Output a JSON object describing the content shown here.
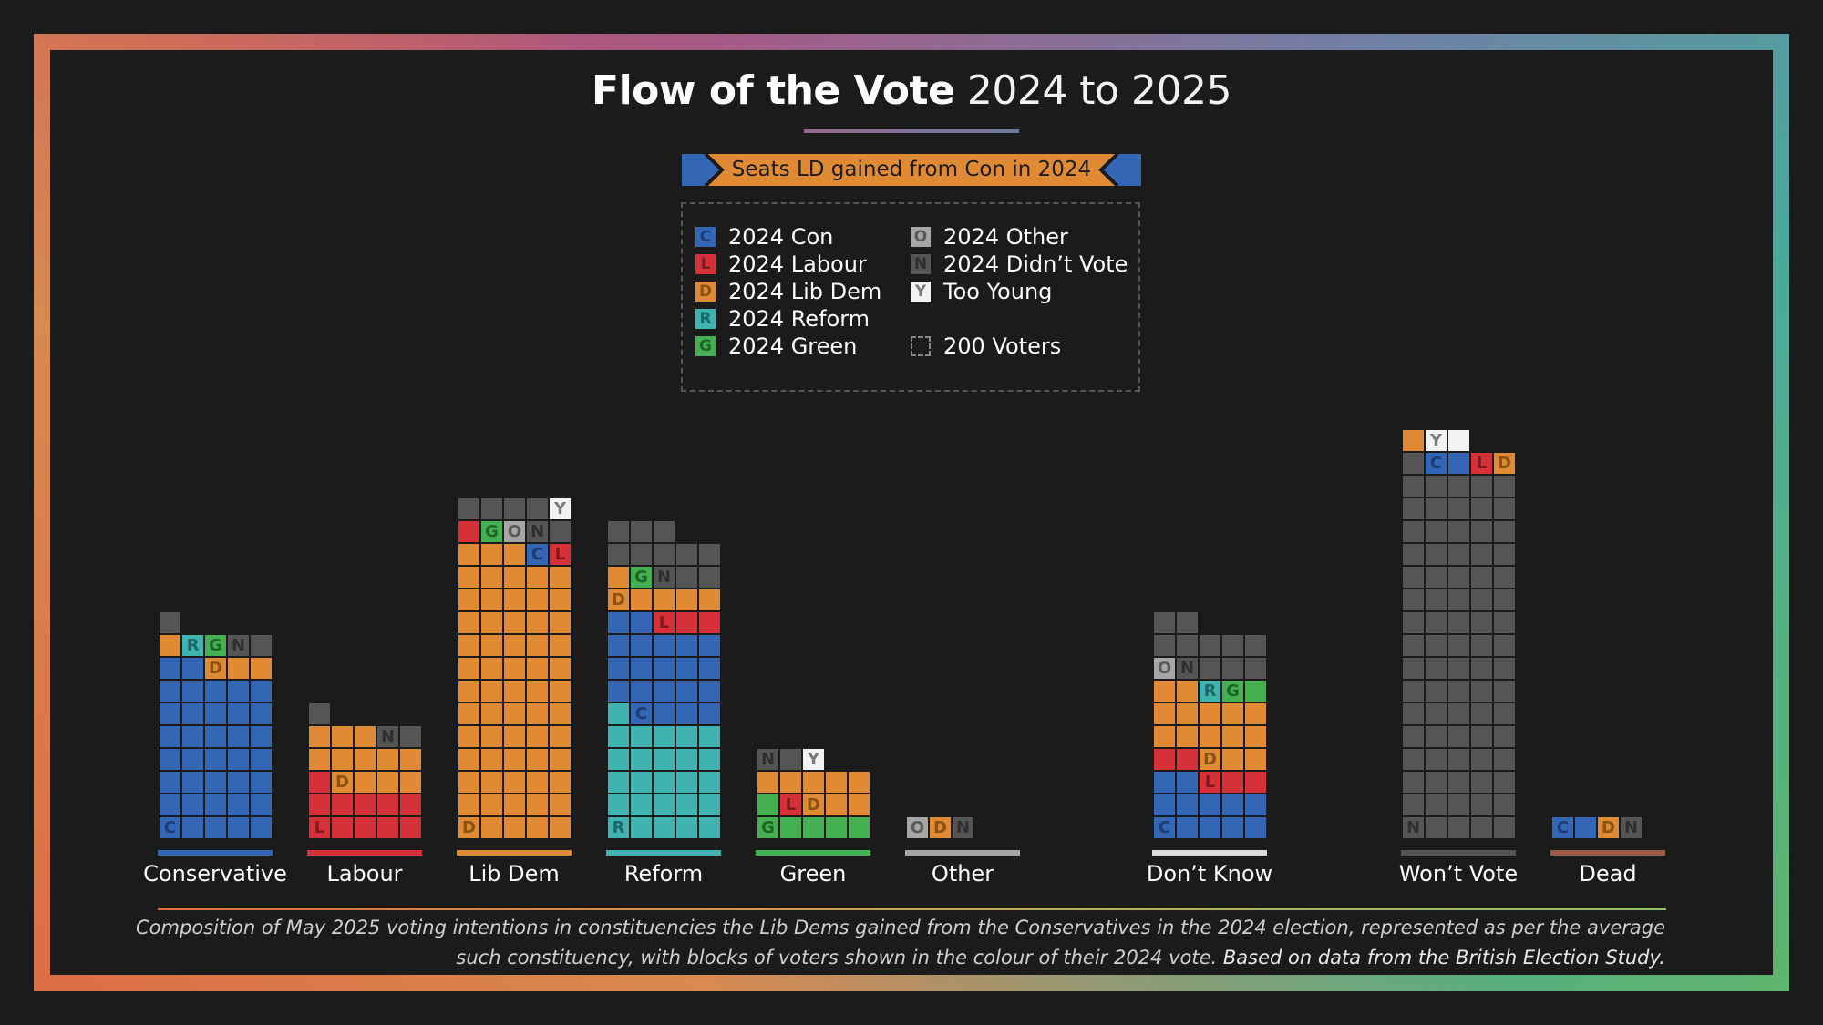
{
  "title": {
    "bold": "Flow of the Vote",
    "light": "2024 to 2025"
  },
  "banner": {
    "text": "Seats LD gained from Con in 2024"
  },
  "colors": {
    "C": "#3366b5",
    "L": "#d63038",
    "D": "#e08b34",
    "R": "#3eb3af",
    "G": "#45b052",
    "O": "#a6a6a6",
    "N": "#555555",
    "Y": "#f2f2f2",
    "C_text": "#1d3c72",
    "L_text": "#7e1a1f",
    "D_text": "#8a5213",
    "R_text": "#1d6a68",
    "G_text": "#1e6628",
    "O_text": "#5a5a5a",
    "N_text": "#2f2f2f",
    "Y_text": "#7a7a7a"
  },
  "legend": {
    "items": [
      {
        "code": "C",
        "label": "2024 Con"
      },
      {
        "code": "L",
        "label": "2024 Labour"
      },
      {
        "code": "D",
        "label": "2024 Lib Dem"
      },
      {
        "code": "R",
        "label": "2024 Reform"
      },
      {
        "code": "G",
        "label": "2024 Green"
      },
      {
        "code": "O",
        "label": "2024 Other"
      },
      {
        "code": "N",
        "label": "2024 Didn’t Vote"
      },
      {
        "code": "Y",
        "label": "Too Young"
      }
    ],
    "unit_label": "200 Voters"
  },
  "chart_data": {
    "type": "waffle",
    "title": "Flow of the Vote 2024 to 2025",
    "subtitle": "Seats LD gained from Con in 2024",
    "unit": "1 block = 200 voters",
    "columns_per_bar": 5,
    "categories": [
      "Conservative",
      "Labour",
      "Lib Dem",
      "Reform",
      "Green",
      "Other",
      "Don’t Know",
      "Won’t Vote",
      "Dead"
    ],
    "bars": [
      {
        "name": "Conservative",
        "underline": "#3366b5",
        "composition": {
          "C": 37,
          "D": 4,
          "R": 1,
          "G": 1,
          "N": 3
        },
        "order": [
          "C",
          "D",
          "R",
          "G",
          "N"
        ]
      },
      {
        "name": "Labour",
        "underline": "#d63038",
        "composition": {
          "L": 11,
          "D": 12,
          "N": 3
        },
        "order": [
          "L",
          "D",
          "N"
        ]
      },
      {
        "name": "Lib Dem",
        "underline": "#e08b34",
        "composition": {
          "D": 63,
          "C": 1,
          "L": 2,
          "G": 1,
          "O": 1,
          "N": 6,
          "Y": 1
        },
        "order": [
          "D",
          "C",
          "L",
          "G",
          "O",
          "N",
          "Y"
        ]
      },
      {
        "name": "Reform",
        "underline": "#3eb3af",
        "composition": {
          "R": 26,
          "C": 21,
          "L": 3,
          "D": 6,
          "G": 1,
          "N": 11
        },
        "order": [
          "R",
          "C",
          "L",
          "D",
          "G",
          "N"
        ]
      },
      {
        "name": "Green",
        "underline": "#45b052",
        "composition": {
          "G": 6,
          "L": 1,
          "D": 8,
          "N": 2,
          "Y": 1
        },
        "order": [
          "G",
          "L",
          "D",
          "N",
          "Y"
        ]
      },
      {
        "name": "Other",
        "underline": "#a6a6a6",
        "composition": {
          "O": 1,
          "D": 1,
          "N": 1
        },
        "order": [
          "O",
          "D",
          "N"
        ]
      },
      {
        "name": "Don’t Know",
        "underline": "#dcdcdc",
        "composition": {
          "C": 12,
          "L": 5,
          "D": 15,
          "R": 1,
          "G": 2,
          "O": 1,
          "N": 11
        },
        "order": [
          "C",
          "L",
          "D",
          "R",
          "G",
          "O",
          "N"
        ]
      },
      {
        "name": "Won’t Vote",
        "underline": "#555555",
        "composition": {
          "N": 81,
          "C": 2,
          "L": 1,
          "D": 2,
          "Y": 2
        },
        "order": [
          "N",
          "C",
          "L",
          "D",
          "Y"
        ]
      },
      {
        "name": "Dead",
        "underline": "#9a5c48",
        "composition": {
          "C": 2,
          "D": 1,
          "N": 1
        },
        "order": [
          "C",
          "D",
          "N"
        ]
      }
    ]
  },
  "footer": {
    "italic_line1": "Composition of May 2025 voting intentions in constituencies the Lib Dems gained from the Conservatives in the 2024 election, represented as per the average",
    "italic_line2": "such constituency, with blocks of voters shown in the colour of their 2024 vote.",
    "source": "Based on data from the British Election Study."
  }
}
